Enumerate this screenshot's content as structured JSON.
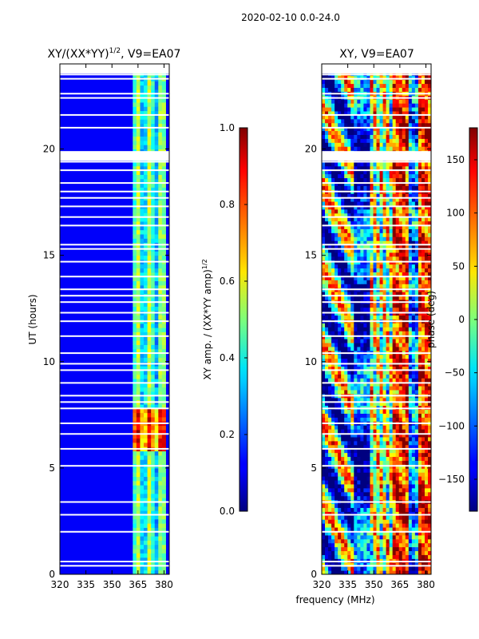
{
  "header": {
    "date_range": "2020-02-10 0.0-24.0"
  },
  "chart_data": [
    {
      "type": "heatmap",
      "title": "XY/(XX*YY)",
      "title_superscript": "1/2",
      "title_suffix": ", V9=EA07",
      "xlabel": "frequency (MHz)",
      "ylabel": "UT (hours)",
      "xlim": [
        320,
        383
      ],
      "ylim": [
        0,
        24
      ],
      "xticks": [
        320,
        335,
        350,
        365,
        380
      ],
      "yticks": [
        0,
        5,
        10,
        15,
        20
      ],
      "colorbar": {
        "label": "XY amp. / (XX*YY amp)",
        "label_superscript": "1/2",
        "range": [
          0.0,
          1.0
        ],
        "ticks": [
          "0.0",
          "0.2",
          "0.4",
          "0.6",
          "0.8",
          "1.0"
        ]
      },
      "colormap": "jet",
      "description_values": {
        "background_level": 0.08,
        "band_363_383_level": 0.45,
        "peak_level_hours": [
          5.8,
          7.8
        ],
        "peak_level": 0.85
      }
    },
    {
      "type": "heatmap",
      "title": "XY, V9=EA07",
      "xlabel": "frequency (MHz)",
      "ylabel": "",
      "xlim": [
        320,
        383
      ],
      "ylim": [
        0,
        24
      ],
      "xticks": [
        320,
        335,
        350,
        365,
        380
      ],
      "yticks": [
        0,
        5,
        10,
        15,
        20
      ],
      "colorbar": {
        "label": "phase (deg)",
        "range": [
          -180,
          180
        ],
        "ticks": [
          "150",
          "100",
          "50",
          "0",
          "−50",
          "−100",
          "−150"
        ]
      },
      "colormap": "jet"
    }
  ],
  "xlabel_shared": "frequency (MHz)",
  "flagged_hours": [
    0.4,
    0.6,
    2.0,
    2.8,
    3.4,
    5.1,
    5.9,
    6.6,
    7.1,
    7.8,
    8.1,
    8.4,
    9.0,
    9.6,
    9.9,
    10.4,
    11.2,
    11.9,
    12.3,
    12.8,
    13.1,
    13.4,
    14.0,
    14.7,
    15.3,
    15.5,
    16.4,
    16.8,
    17.3,
    17.7,
    18.0,
    18.4,
    19.0,
    19.4,
    19.6,
    21.0,
    21.6,
    22.4,
    22.6,
    23.3,
    23.5,
    23.7
  ]
}
